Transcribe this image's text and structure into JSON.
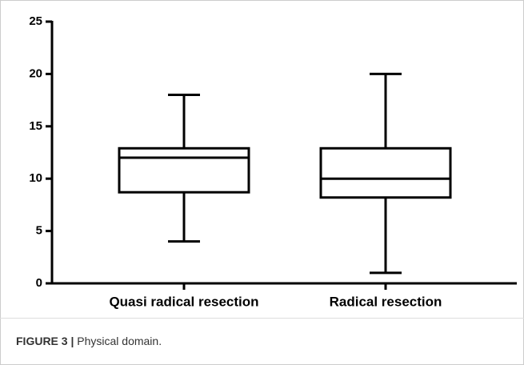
{
  "chart_data": {
    "type": "box",
    "categories": [
      "Quasi radical resection",
      "Radical resection"
    ],
    "boxes": [
      {
        "min": 4,
        "q1": 8.7,
        "median": 12,
        "q3": 12.9,
        "max": 18
      },
      {
        "min": 1,
        "q1": 8.2,
        "median": 10,
        "q3": 12.9,
        "max": 20
      }
    ],
    "color": "#000000",
    "ylim": [
      0,
      25
    ],
    "yticks": [
      0,
      5,
      10,
      15,
      20,
      25
    ]
  },
  "caption": {
    "label": "FIGURE 3 |",
    "text": "Physical domain."
  }
}
